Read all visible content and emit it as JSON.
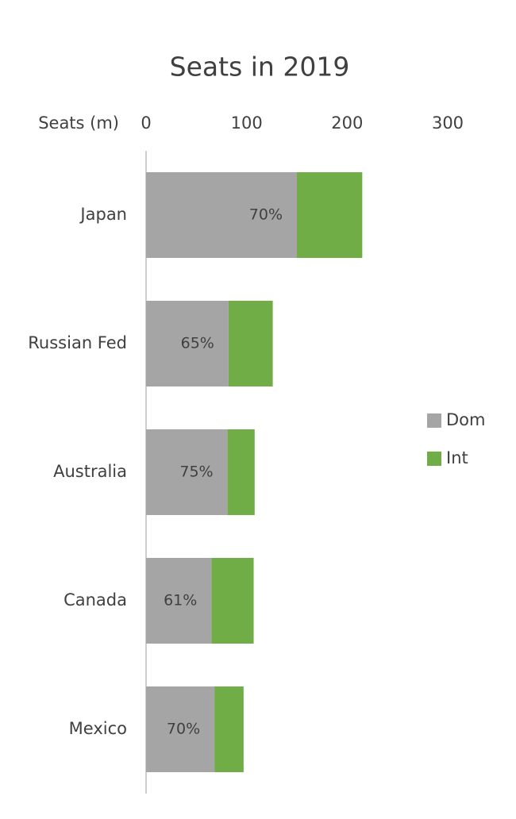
{
  "chart_data": {
    "type": "stacked-barh",
    "title": "Seats in 2019",
    "x_label": "Seats (m)",
    "categories": [
      "Japan",
      "Russian Fed",
      "Australia",
      "Canada",
      "Mexico"
    ],
    "series": [
      {
        "name": "Dom",
        "color": "#a5a5a5",
        "values": [
          150,
          82,
          81,
          65,
          68
        ]
      },
      {
        "name": "Int",
        "color": "#70ad47",
        "values": [
          65,
          44,
          27,
          42,
          29
        ]
      }
    ],
    "dom_share_labels": [
      "70%",
      "65%",
      "75%",
      "61%",
      "70%"
    ],
    "xlim": [
      0,
      300
    ],
    "xticks": [
      0,
      100,
      200,
      300
    ],
    "legend": "right"
  }
}
